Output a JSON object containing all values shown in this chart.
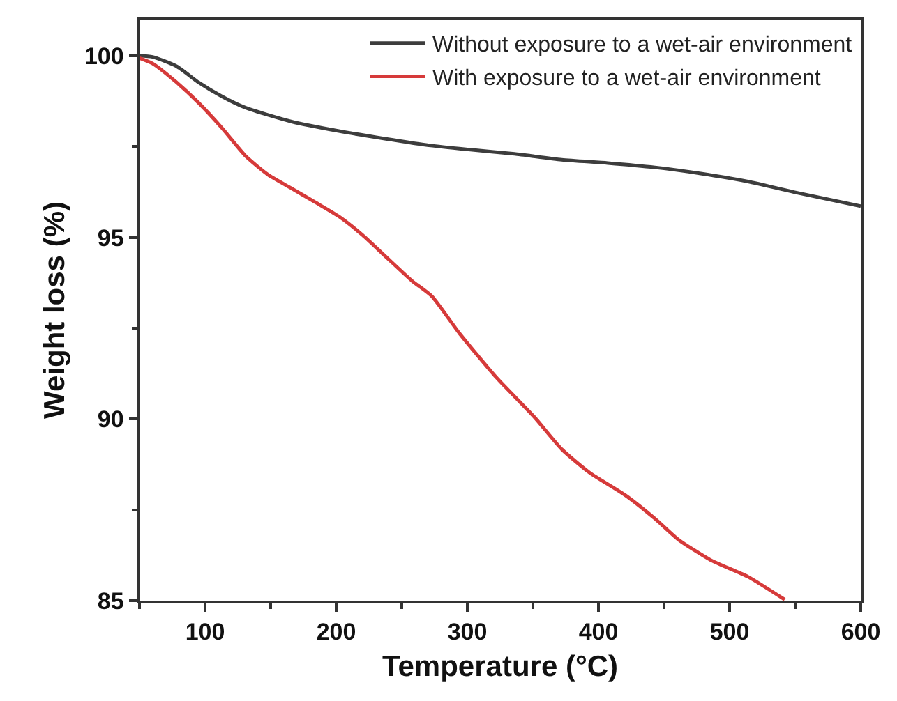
{
  "chart_data": {
    "type": "line",
    "xlabel": "Temperature (°C)",
    "ylabel": "Weight loss (%)",
    "xlim": [
      50,
      600
    ],
    "xticks": [
      100,
      200,
      300,
      400,
      500,
      600
    ],
    "ylim": [
      85,
      101
    ],
    "yticks": [
      85,
      90,
      95,
      100
    ],
    "legend": "top right",
    "marker": "none",
    "line_style": "solid",
    "series": [
      {
        "name": "Without exposure to a wet-air environment",
        "color": "#3d3d3d",
        "x": [
          50,
          60,
          78,
          95,
          113,
          131,
          166,
          202,
          237,
          272,
          301,
          336,
          372,
          407,
          443,
          478,
          514,
          549,
          600
        ],
        "values": [
          100,
          99.97,
          99.72,
          99.27,
          98.88,
          98.57,
          98.19,
          97.93,
          97.72,
          97.53,
          97.42,
          97.3,
          97.14,
          97.05,
          96.93,
          96.76,
          96.54,
          96.25,
          95.86
        ]
      },
      {
        "name": "With exposure to a wet-air environment",
        "color": "#d63a3a",
        "x": [
          50,
          60,
          78,
          95,
          113,
          131,
          148,
          166,
          184,
          202,
          220,
          237,
          258,
          273,
          294,
          322,
          351,
          372,
          393,
          421,
          443,
          461,
          486,
          514,
          542
        ],
        "values": [
          99.94,
          99.79,
          99.28,
          98.71,
          98.01,
          97.24,
          96.73,
          96.35,
          95.97,
          95.58,
          95.07,
          94.5,
          93.8,
          93.38,
          92.36,
          91.15,
          90.06,
          89.17,
          88.53,
          87.89,
          87.26,
          86.68,
          86.11,
          85.66,
          85.03
        ]
      }
    ]
  }
}
